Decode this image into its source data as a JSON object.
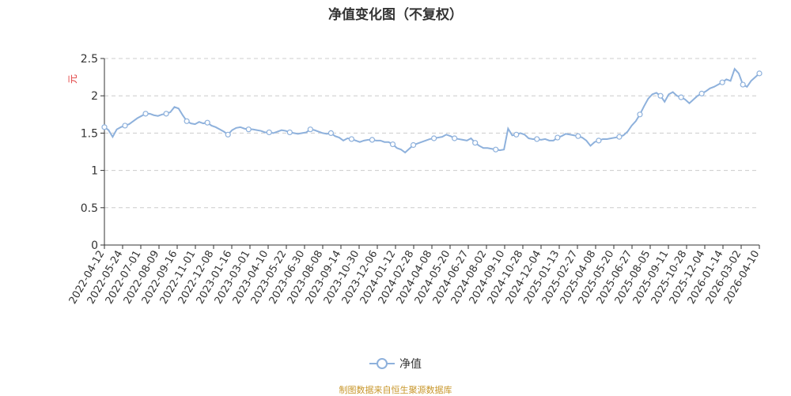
{
  "chart_data": {
    "type": "line",
    "title": "净值变化图（不复权）",
    "ylabel": "元",
    "ylim": [
      0,
      2.5
    ],
    "yticks": [
      "0",
      "0.5",
      "1",
      "1.5",
      "2",
      "2.5"
    ],
    "xticks": [
      "2022-04-12",
      "2022-05-24",
      "2022-07-01",
      "2022-08-09",
      "2022-09-16",
      "2022-11-01",
      "2022-12-08",
      "2023-01-16",
      "2023-03-01",
      "2023-04-10",
      "2023-05-22",
      "2023-06-30",
      "2023-08-08",
      "2023-09-14",
      "2023-10-30",
      "2023-12-06",
      "2024-01-12",
      "2024-02-28",
      "2024-04-08",
      "2024-05-20",
      "2024-06-27",
      "2024-08-02",
      "2024-09-10",
      "2024-10-28",
      "2024-12-04",
      "2025-01-13",
      "2025-02-27",
      "2025-04-08",
      "2025-05-20",
      "2025-06-27",
      "2025-08-05",
      "2025-09-11",
      "2025-10-28",
      "2025-12-04",
      "2026-01-14",
      "2026-03-02",
      "2026-04-10"
    ],
    "grid": true,
    "legend_position": "bottom",
    "series": [
      {
        "name": "净值",
        "color": "#8eb1dc",
        "values": [
          1.58,
          1.54,
          1.45,
          1.55,
          1.58,
          1.6,
          1.62,
          1.66,
          1.7,
          1.73,
          1.76,
          1.76,
          1.74,
          1.73,
          1.75,
          1.76,
          1.78,
          1.85,
          1.83,
          1.74,
          1.66,
          1.63,
          1.62,
          1.65,
          1.63,
          1.64,
          1.6,
          1.58,
          1.55,
          1.52,
          1.48,
          1.54,
          1.57,
          1.58,
          1.56,
          1.55,
          1.55,
          1.54,
          1.53,
          1.51,
          1.51,
          1.5,
          1.52,
          1.54,
          1.53,
          1.51,
          1.5,
          1.49,
          1.5,
          1.51,
          1.55,
          1.54,
          1.52,
          1.5,
          1.49,
          1.5,
          1.46,
          1.44,
          1.4,
          1.43,
          1.42,
          1.4,
          1.38,
          1.4,
          1.41,
          1.41,
          1.4,
          1.4,
          1.38,
          1.38,
          1.35,
          1.3,
          1.28,
          1.24,
          1.29,
          1.34,
          1.36,
          1.38,
          1.4,
          1.42,
          1.43,
          1.44,
          1.45,
          1.48,
          1.46,
          1.43,
          1.42,
          1.41,
          1.4,
          1.43,
          1.37,
          1.33,
          1.3,
          1.3,
          1.29,
          1.28,
          1.27,
          1.28,
          1.56,
          1.47,
          1.48,
          1.5,
          1.48,
          1.43,
          1.42,
          1.42,
          1.41,
          1.42,
          1.4,
          1.4,
          1.44,
          1.46,
          1.49,
          1.48,
          1.47,
          1.46,
          1.44,
          1.4,
          1.33,
          1.38,
          1.4,
          1.42,
          1.42,
          1.43,
          1.44,
          1.45,
          1.47,
          1.52,
          1.6,
          1.66,
          1.75,
          1.86,
          1.96,
          2.02,
          2.04,
          2.0,
          1.92,
          2.02,
          2.05,
          2.0,
          1.98,
          1.95,
          1.9,
          1.95,
          2.0,
          2.03,
          2.06,
          2.1,
          2.12,
          2.15,
          2.18,
          2.22,
          2.2,
          2.36,
          2.3,
          2.15,
          2.12,
          2.2,
          2.25,
          2.3
        ]
      }
    ]
  },
  "legend": {
    "label": "净值"
  },
  "source": "制图数据来自恒生聚源数据库"
}
